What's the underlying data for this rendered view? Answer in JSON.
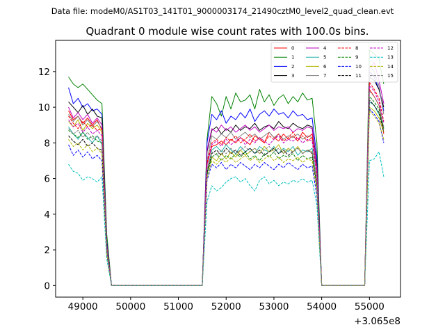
{
  "chart_data": {
    "type": "line",
    "suptitle": "Data file: modeM0/AS1T03_141T01_9000003174_21490cztM0_level2_quad_clean.evt",
    "title": "Quadrant 0 module wise count rates with 100.0s bins.",
    "xlabel": "",
    "ylabel": "",
    "x_offset_label": "+3.065e8",
    "xlim": [
      48430,
      55650
    ],
    "ylim": [
      -0.65,
      13.75
    ],
    "xticks": [
      49000,
      50000,
      51000,
      52000,
      53000,
      54000,
      55000
    ],
    "yticks": [
      0,
      2,
      4,
      6,
      8,
      10,
      12
    ],
    "legend_position": "top-right",
    "legend_columns": 4,
    "x": [
      48700,
      48800,
      48900,
      49000,
      49100,
      49200,
      49300,
      49400,
      49500,
      49600,
      49700,
      49800,
      49900,
      50000,
      50100,
      50200,
      50300,
      50400,
      50500,
      50600,
      50700,
      50800,
      50900,
      51000,
      51100,
      51200,
      51300,
      51400,
      51500,
      51600,
      51700,
      51800,
      51900,
      52000,
      52100,
      52200,
      52300,
      52400,
      52500,
      52600,
      52700,
      52800,
      52900,
      53000,
      53100,
      53200,
      53300,
      53400,
      53500,
      53600,
      53700,
      53800,
      53900,
      54000,
      54100,
      54200,
      54300,
      54400,
      54500,
      54600,
      54700,
      54800,
      54900,
      55000,
      55100,
      55200,
      55300
    ],
    "series": [
      {
        "name": "0",
        "color": "#ff0000",
        "dash": "solid",
        "values": [
          9.8,
          9.3,
          9.5,
          9.1,
          9.4,
          9.0,
          9.3,
          8.7,
          2.0,
          0,
          0,
          0,
          0,
          0,
          0,
          0,
          0,
          0,
          0,
          0,
          0,
          0,
          0,
          0,
          0,
          0,
          0,
          0,
          0,
          6.8,
          7.8,
          7.9,
          8.1,
          7.9,
          8.2,
          8.0,
          8.3,
          8.1,
          7.9,
          8.4,
          8.2,
          8.0,
          8.6,
          8.3,
          8.1,
          8.5,
          8.2,
          8.4,
          8.1,
          8.6,
          8.3,
          8.5,
          6.2,
          0,
          0,
          0,
          0,
          0,
          0,
          0,
          0,
          0,
          0,
          11.0,
          10.6,
          10.1,
          8.5
        ]
      },
      {
        "name": "1",
        "color": "#008000",
        "dash": "solid",
        "values": [
          11.7,
          11.3,
          11.1,
          11.3,
          11.0,
          10.7,
          10.4,
          10.2,
          2.9,
          0,
          0,
          0,
          0,
          0,
          0,
          0,
          0,
          0,
          0,
          0,
          0,
          0,
          0,
          0,
          0,
          0,
          0,
          0,
          0,
          8.2,
          10.6,
          10.2,
          9.5,
          10.6,
          9.9,
          10.8,
          10.3,
          10.4,
          10.7,
          9.9,
          11.0,
          10.3,
          10.7,
          10.1,
          10.5,
          10.7,
          10.2,
          10.6,
          10.3,
          10.8,
          10.4,
          10.5,
          8.0,
          0,
          0,
          0,
          0,
          0,
          0,
          0,
          0,
          0,
          0,
          13.2,
          13.0,
          12.7,
          11.3
        ]
      },
      {
        "name": "2",
        "color": "#0000ff",
        "dash": "solid",
        "values": [
          11.1,
          10.2,
          10.5,
          10.0,
          10.2,
          9.8,
          9.9,
          9.6,
          2.5,
          0,
          0,
          0,
          0,
          0,
          0,
          0,
          0,
          0,
          0,
          0,
          0,
          0,
          0,
          0,
          0,
          0,
          0,
          0,
          0,
          8.0,
          9.6,
          9.3,
          9.8,
          9.1,
          9.5,
          9.3,
          9.7,
          9.4,
          9.9,
          9.2,
          9.6,
          9.8,
          9.5,
          9.9,
          9.6,
          9.7,
          9.4,
          9.8,
          9.5,
          9.6,
          9.3,
          9.4,
          7.2,
          0,
          0,
          0,
          0,
          0,
          0,
          0,
          0,
          0,
          0,
          12.0,
          11.7,
          11.0,
          9.8
        ]
      },
      {
        "name": "3",
        "color": "#000000",
        "dash": "solid",
        "values": [
          10.3,
          10.0,
          9.7,
          10.1,
          9.6,
          9.9,
          9.5,
          9.4,
          2.4,
          0,
          0,
          0,
          0,
          0,
          0,
          0,
          0,
          0,
          0,
          0,
          0,
          0,
          0,
          0,
          0,
          0,
          0,
          0,
          0,
          7.5,
          8.7,
          8.9,
          8.5,
          8.8,
          8.6,
          9.0,
          8.7,
          8.9,
          8.8,
          9.1,
          8.7,
          8.9,
          9.0,
          8.8,
          9.2,
          8.9,
          8.8,
          9.1,
          8.9,
          8.8,
          9.0,
          8.9,
          6.8,
          0,
          0,
          0,
          0,
          0,
          0,
          0,
          0,
          0,
          0,
          11.7,
          11.5,
          11.0,
          10.0
        ]
      },
      {
        "name": "4",
        "color": "#bf00bf",
        "dash": "solid",
        "values": [
          10.0,
          9.4,
          9.7,
          9.3,
          9.6,
          9.1,
          9.4,
          9.0,
          2.3,
          0,
          0,
          0,
          0,
          0,
          0,
          0,
          0,
          0,
          0,
          0,
          0,
          0,
          0,
          0,
          0,
          0,
          0,
          0,
          0,
          7.6,
          8.8,
          8.6,
          9.0,
          8.7,
          8.9,
          8.6,
          8.8,
          9.0,
          8.7,
          8.9,
          8.6,
          8.8,
          9.0,
          8.7,
          8.9,
          8.8,
          8.9,
          8.6,
          8.8,
          8.7,
          8.9,
          8.8,
          6.6,
          0,
          0,
          0,
          0,
          0,
          0,
          0,
          0,
          0,
          0,
          12.2,
          12.5,
          11.5,
          10.2
        ]
      },
      {
        "name": "5",
        "color": "#20b2aa",
        "dash": "solid",
        "values": [
          8.9,
          8.5,
          8.2,
          8.6,
          8.3,
          8.0,
          8.4,
          7.9,
          1.9,
          0,
          0,
          0,
          0,
          0,
          0,
          0,
          0,
          0,
          0,
          0,
          0,
          0,
          0,
          0,
          0,
          0,
          0,
          0,
          0,
          6.4,
          7.6,
          7.8,
          7.5,
          7.9,
          7.6,
          7.4,
          7.8,
          7.5,
          7.7,
          7.4,
          7.8,
          7.6,
          7.5,
          7.8,
          7.4,
          7.7,
          7.5,
          7.8,
          7.3,
          7.6,
          7.5,
          7.7,
          5.8,
          0,
          0,
          0,
          0,
          0,
          0,
          0,
          0,
          0,
          0,
          10.3,
          10.1,
          9.6,
          8.9
        ]
      },
      {
        "name": "6",
        "color": "#b5b500",
        "dash": "solid",
        "values": [
          9.2,
          8.9,
          9.3,
          8.7,
          9.1,
          8.8,
          9.0,
          8.6,
          2.1,
          0,
          0,
          0,
          0,
          0,
          0,
          0,
          0,
          0,
          0,
          0,
          0,
          0,
          0,
          0,
          0,
          0,
          0,
          0,
          0,
          6.5,
          7.2,
          7.0,
          7.4,
          7.1,
          7.5,
          7.2,
          7.6,
          7.3,
          7.5,
          7.7,
          7.4,
          7.8,
          7.5,
          7.6,
          7.9,
          7.4,
          7.7,
          7.5,
          7.8,
          7.4,
          7.6,
          7.5,
          5.7,
          0,
          0,
          0,
          0,
          0,
          0,
          0,
          0,
          0,
          0,
          10.0,
          9.8,
          9.4,
          8.6
        ]
      },
      {
        "name": "7",
        "color": "#808080",
        "dash": "solid",
        "values": [
          9.6,
          9.2,
          9.5,
          9.0,
          9.3,
          8.9,
          9.2,
          8.8,
          2.2,
          0,
          0,
          0,
          0,
          0,
          0,
          0,
          0,
          0,
          0,
          0,
          0,
          0,
          0,
          0,
          0,
          0,
          0,
          0,
          0,
          7.0,
          8.4,
          8.2,
          8.5,
          8.3,
          8.6,
          8.2,
          8.4,
          8.6,
          8.3,
          8.5,
          8.2,
          8.4,
          8.6,
          8.3,
          8.5,
          8.2,
          8.4,
          8.3,
          8.5,
          8.2,
          8.4,
          8.3,
          6.3,
          0,
          0,
          0,
          0,
          0,
          0,
          0,
          0,
          0,
          0,
          12.3,
          12.0,
          11.2,
          9.6
        ]
      },
      {
        "name": "8",
        "color": "#ff0000",
        "dash": "dashed",
        "values": [
          9.5,
          9.1,
          8.8,
          9.2,
          8.9,
          9.0,
          8.7,
          8.8,
          2.1,
          0,
          0,
          0,
          0,
          0,
          0,
          0,
          0,
          0,
          0,
          0,
          0,
          0,
          0,
          0,
          0,
          0,
          0,
          0,
          0,
          6.9,
          8.0,
          8.2,
          7.9,
          8.3,
          8.1,
          8.4,
          8.0,
          8.2,
          8.5,
          8.1,
          8.3,
          8.0,
          8.4,
          8.2,
          8.5,
          8.1,
          8.3,
          8.6,
          8.2,
          8.4,
          8.1,
          8.3,
          6.3,
          0,
          0,
          0,
          0,
          0,
          0,
          0,
          0,
          0,
          0,
          11.4,
          11.0,
          10.5,
          9.2
        ]
      },
      {
        "name": "9",
        "color": "#008000",
        "dash": "dashed",
        "values": [
          8.7,
          8.5,
          8.3,
          8.6,
          8.2,
          8.4,
          8.1,
          8.0,
          2.0,
          0,
          0,
          0,
          0,
          0,
          0,
          0,
          0,
          0,
          0,
          0,
          0,
          0,
          0,
          0,
          0,
          0,
          0,
          0,
          0,
          6.2,
          7.2,
          7.4,
          7.0,
          7.3,
          7.1,
          7.4,
          7.2,
          7.5,
          7.1,
          7.3,
          7.0,
          7.4,
          7.2,
          7.5,
          7.1,
          7.3,
          7.2,
          7.4,
          7.0,
          7.3,
          7.1,
          7.2,
          5.5,
          0,
          0,
          0,
          0,
          0,
          0,
          0,
          0,
          0,
          0,
          10.6,
          10.3,
          9.9,
          8.8
        ]
      },
      {
        "name": "10",
        "color": "#0000ff",
        "dash": "dashed",
        "values": [
          7.9,
          7.3,
          7.6,
          7.2,
          7.5,
          7.1,
          7.3,
          7.0,
          1.8,
          0,
          0,
          0,
          0,
          0,
          0,
          0,
          0,
          0,
          0,
          0,
          0,
          0,
          0,
          0,
          0,
          0,
          0,
          0,
          0,
          5.9,
          6.8,
          6.6,
          6.9,
          6.5,
          6.8,
          6.6,
          6.9,
          6.7,
          6.5,
          6.8,
          6.6,
          6.9,
          6.7,
          6.5,
          6.8,
          6.6,
          6.9,
          6.7,
          6.5,
          6.8,
          6.6,
          6.7,
          5.0,
          0,
          0,
          0,
          0,
          0,
          0,
          0,
          0,
          0,
          0,
          9.9,
          9.6,
          9.2,
          8.0
        ]
      },
      {
        "name": "11",
        "color": "#000000",
        "dash": "dashed",
        "values": [
          8.4,
          8.1,
          7.9,
          8.2,
          7.8,
          8.0,
          7.7,
          7.6,
          1.9,
          0,
          0,
          0,
          0,
          0,
          0,
          0,
          0,
          0,
          0,
          0,
          0,
          0,
          0,
          0,
          0,
          0,
          0,
          0,
          0,
          6.3,
          7.4,
          7.6,
          7.3,
          7.7,
          7.4,
          7.6,
          7.3,
          7.5,
          7.7,
          7.4,
          7.6,
          7.3,
          7.5,
          7.7,
          7.4,
          7.6,
          7.3,
          7.5,
          7.7,
          7.4,
          7.6,
          7.4,
          5.6,
          0,
          0,
          0,
          0,
          0,
          0,
          0,
          0,
          0,
          0,
          10.4,
          10.1,
          9.7,
          8.6
        ]
      },
      {
        "name": "12",
        "color": "#bf00bf",
        "dash": "dashed",
        "values": [
          9.3,
          8.9,
          9.1,
          8.6,
          8.9,
          8.5,
          8.7,
          8.4,
          2.0,
          0,
          0,
          0,
          0,
          0,
          0,
          0,
          0,
          0,
          0,
          0,
          0,
          0,
          0,
          0,
          0,
          0,
          0,
          0,
          0,
          6.7,
          7.9,
          8.1,
          7.8,
          8.2,
          7.9,
          8.1,
          8.3,
          7.9,
          8.2,
          8.0,
          8.3,
          8.1,
          7.9,
          8.2,
          8.4,
          8.0,
          8.2,
          8.1,
          8.3,
          8.0,
          8.2,
          8.1,
          6.1,
          0,
          0,
          0,
          0,
          0,
          0,
          0,
          0,
          0,
          0,
          11.2,
          10.9,
          10.3,
          9.1
        ]
      },
      {
        "name": "13",
        "color": "#00bfbf",
        "dash": "dashed",
        "values": [
          6.8,
          6.4,
          6.3,
          5.9,
          6.1,
          6.0,
          5.8,
          6.1,
          1.5,
          0,
          0,
          0,
          0,
          0,
          0,
          0,
          0,
          0,
          0,
          0,
          0,
          0,
          0,
          0,
          0,
          0,
          0,
          0,
          0,
          4.7,
          5.6,
          5.3,
          5.5,
          5.8,
          6.0,
          6.1,
          5.8,
          6.0,
          5.6,
          5.3,
          5.9,
          6.1,
          5.7,
          5.9,
          5.6,
          5.8,
          5.7,
          5.9,
          5.8,
          6.0,
          5.8,
          5.9,
          4.5,
          0,
          0,
          0,
          0,
          0,
          0,
          0,
          0,
          0,
          0,
          7.0,
          7.1,
          7.5,
          6.1
        ]
      },
      {
        "name": "14",
        "color": "#b5b500",
        "dash": "dashed",
        "values": [
          8.2,
          7.8,
          8.0,
          7.6,
          7.9,
          7.5,
          7.7,
          7.4,
          1.8,
          0,
          0,
          0,
          0,
          0,
          0,
          0,
          0,
          0,
          0,
          0,
          0,
          0,
          0,
          0,
          0,
          0,
          0,
          0,
          0,
          6.0,
          7.0,
          6.8,
          7.1,
          6.9,
          7.2,
          6.9,
          7.1,
          7.3,
          7.0,
          7.2,
          6.9,
          7.1,
          7.3,
          7.0,
          7.2,
          6.9,
          7.1,
          7.0,
          7.2,
          6.9,
          7.1,
          7.0,
          5.3,
          0,
          0,
          0,
          0,
          0,
          0,
          0,
          0,
          0,
          0,
          9.8,
          9.5,
          9.1,
          8.2
        ]
      },
      {
        "name": "15",
        "color": "#808080",
        "dash": "dashed",
        "values": [
          8.8,
          8.5,
          8.7,
          8.3,
          8.6,
          8.2,
          8.4,
          8.1,
          2.0,
          0,
          0,
          0,
          0,
          0,
          0,
          0,
          0,
          0,
          0,
          0,
          0,
          0,
          0,
          0,
          0,
          0,
          0,
          0,
          0,
          6.5,
          7.5,
          7.3,
          7.6,
          7.4,
          7.7,
          7.4,
          7.6,
          7.8,
          7.5,
          7.7,
          7.4,
          7.6,
          7.8,
          7.5,
          7.7,
          7.4,
          7.6,
          7.5,
          7.7,
          7.4,
          7.6,
          7.5,
          5.7,
          0,
          0,
          0,
          0,
          0,
          0,
          0,
          0,
          0,
          0,
          10.9,
          10.6,
          10.1,
          8.9
        ]
      }
    ]
  }
}
